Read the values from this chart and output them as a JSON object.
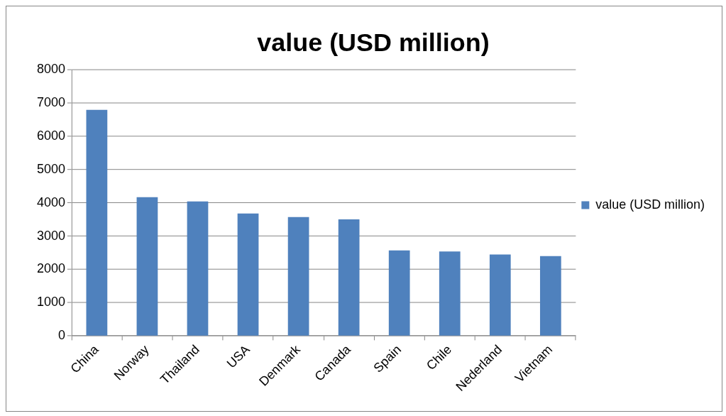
{
  "chart_data": {
    "type": "bar",
    "title": "value (USD million)",
    "categories": [
      "China",
      "Norway",
      "Thailand",
      "USA",
      "Denmark",
      "Canada",
      "Spain",
      "Chile",
      "Nederland",
      "Vietnam"
    ],
    "series": [
      {
        "name": "value (USD million)",
        "color": "#4f81bd",
        "values": [
          6790,
          4170,
          4040,
          3680,
          3570,
          3500,
          2570,
          2540,
          2450,
          2400
        ]
      }
    ],
    "ylim": [
      0,
      8000
    ],
    "yticks": [
      0,
      1000,
      2000,
      3000,
      4000,
      5000,
      6000,
      7000,
      8000
    ],
    "grid": "y",
    "legend": "right"
  }
}
